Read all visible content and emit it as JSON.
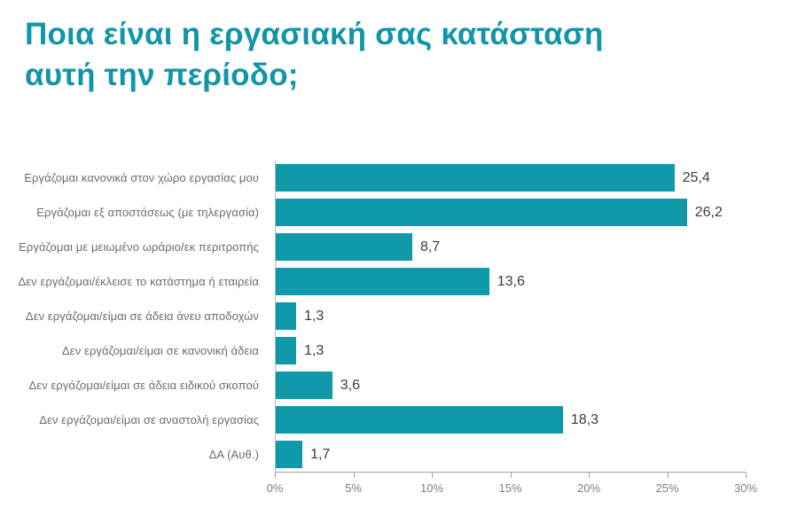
{
  "page": {
    "background": "#ffffff"
  },
  "title": {
    "text": "Ποια είναι η εργασιακή σας κατάσταση αυτή την περίοδο;",
    "color": "#1295A8"
  },
  "chart_data": {
    "type": "bar",
    "orientation": "horizontal",
    "title": "Ποια είναι η εργασιακή σας κατάσταση αυτή την περίοδο;",
    "categories": [
      "Εργάζομαι κανονικά στον χώρο εργασίας μου",
      "Εργάζομαι εξ αποστάσεως (με τηλεργασία)",
      "Εργάζομαι με μειωμένο ωράριο/εκ περιτροπής",
      "Δεν εργάζομαι/έκλεισε το κατάστημα ή εταιρεία",
      "Δεν εργάζομαι/είμαι σε άδεια άνευ αποδοχών",
      "Δεν εργάζομαι/είμαι σε κανονική άδεια",
      "Δεν εργάζομαι/είμαι σε άδεια ειδικού σκοπού",
      "Δεν εργάζομαι/είμαι σε αναστολή εργασίας",
      "ΔΑ (Αυθ.)"
    ],
    "values": [
      25.4,
      26.2,
      8.7,
      13.6,
      1.3,
      1.3,
      3.6,
      18.3,
      1.7
    ],
    "value_labels": [
      "25,4",
      "26,2",
      "8,7",
      "13,6",
      "1,3",
      "1,3",
      "3,6",
      "18,3",
      "1,7"
    ],
    "xlabel": "",
    "ylabel": "",
    "xlim": [
      0,
      30
    ],
    "x_ticks": [
      "0%",
      "5%",
      "10%",
      "15%",
      "20%",
      "25%",
      "30%"
    ],
    "x_tick_values": [
      0,
      5,
      10,
      15,
      20,
      25,
      30
    ],
    "bar_color": "#0F99A9",
    "grid": false,
    "legend": false
  },
  "colors": {
    "accent": "#0F99A9",
    "title_text": "#1295A8",
    "category_text": "#6a6b6e",
    "value_text": "#3b3b3d",
    "axis_line": "#9d9ea1",
    "tick_text": "#7c7d80"
  }
}
